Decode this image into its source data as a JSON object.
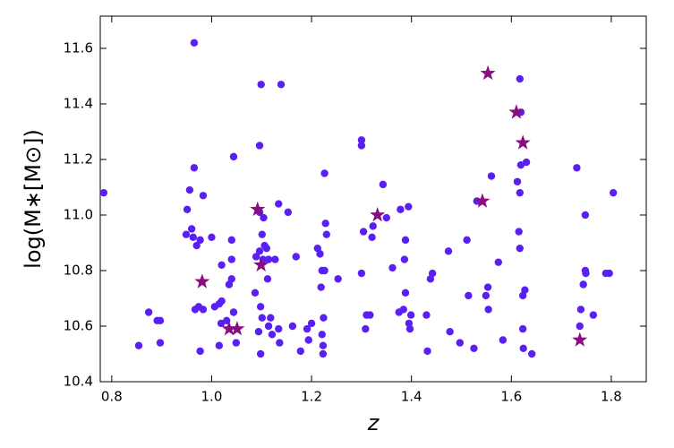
{
  "chart_data": {
    "type": "scatter",
    "xlabel": "z",
    "ylabel": "log(M∗[M⊙])",
    "xlim": [
      0.777,
      1.87
    ],
    "ylim": [
      10.4,
      11.716
    ],
    "xticks": [
      0.8,
      {
        "value": 1,
        "label": "1.0"
      },
      1.2,
      1.4,
      1.6,
      1.8
    ],
    "yticks": [
      10.4,
      10.6,
      10.8,
      {
        "value": 11,
        "label": "11.0"
      },
      11.2,
      11.4,
      11.6
    ],
    "series": [
      {
        "color": "#5a1ff2",
        "marker": "circle",
        "x": [
          0.784,
          0.854,
          0.874,
          0.891,
          0.897,
          0.897,
          0.965,
          0.965,
          0.956,
          0.951,
          0.949,
          0.96,
          0.963,
          0.97,
          0.977,
          0.983,
          0.967,
          0.974,
          0.983,
          0.977,
          1.0,
          1.006,
          1.015,
          1.02,
          1.02,
          1.015,
          1.019,
          1.04,
          1.04,
          1.035,
          1.04,
          1.044,
          1.044,
          1.049,
          1.03,
          1.096,
          1.099,
          1.139,
          1.096,
          1.101,
          1.104,
          1.096,
          1.103,
          1.106,
          1.11,
          1.114,
          1.089,
          1.087,
          1.098,
          1.094,
          1.098,
          1.101,
          1.112,
          1.114,
          1.121,
          1.118,
          1.127,
          1.134,
          1.134,
          1.136,
          1.153,
          1.162,
          1.169,
          1.178,
          1.191,
          1.194,
          1.2,
          1.212,
          1.219,
          1.217,
          1.221,
          1.226,
          1.228,
          1.23,
          1.226,
          1.224,
          1.221,
          1.223,
          1.223,
          1.253,
          1.3,
          1.3,
          1.3,
          1.304,
          1.308,
          1.31,
          1.317,
          1.321,
          1.323,
          1.343,
          1.35,
          1.362,
          1.375,
          1.378,
          1.384,
          1.386,
          1.388,
          1.388,
          1.394,
          1.395,
          1.397,
          1.399,
          1.43,
          1.432,
          1.438,
          1.442,
          1.474,
          1.477,
          1.497,
          1.511,
          1.514,
          1.525,
          1.531,
          1.549,
          1.553,
          1.554,
          1.56,
          1.574,
          1.583,
          1.612,
          1.615,
          1.617,
          1.617,
          1.617,
          1.619,
          1.619,
          1.623,
          1.623,
          1.627,
          1.624,
          1.63,
          1.641,
          1.731,
          1.748,
          1.744,
          1.789,
          1.796,
          1.804,
          1.748,
          1.749,
          1.739,
          1.737,
          1.764
        ],
        "values": [
          11.08,
          10.53,
          10.65,
          10.62,
          10.62,
          10.54,
          11.62,
          11.17,
          11.09,
          11.02,
          10.93,
          10.95,
          10.92,
          10.89,
          10.91,
          11.07,
          10.66,
          10.67,
          10.66,
          10.51,
          10.92,
          10.67,
          10.68,
          10.69,
          10.82,
          10.53,
          10.61,
          10.91,
          10.84,
          10.75,
          10.77,
          11.21,
          10.65,
          10.54,
          10.62,
          11.25,
          11.47,
          11.47,
          11.01,
          10.93,
          10.99,
          10.87,
          10.84,
          10.89,
          10.88,
          10.84,
          10.85,
          10.72,
          10.67,
          10.58,
          10.5,
          10.63,
          10.77,
          10.6,
          10.57,
          10.63,
          10.84,
          11.04,
          10.59,
          10.54,
          11.01,
          10.6,
          10.85,
          10.51,
          10.59,
          10.55,
          10.61,
          10.88,
          10.74,
          10.86,
          10.8,
          11.15,
          10.97,
          10.93,
          10.8,
          10.63,
          10.57,
          10.53,
          10.5,
          10.77,
          11.27,
          11.25,
          10.79,
          10.94,
          10.59,
          10.64,
          10.64,
          10.92,
          10.96,
          11.11,
          10.99,
          10.81,
          10.65,
          11.02,
          10.66,
          10.84,
          10.91,
          10.72,
          11.03,
          10.61,
          10.59,
          10.64,
          10.64,
          10.51,
          10.77,
          10.79,
          10.87,
          10.58,
          10.54,
          10.91,
          10.71,
          10.52,
          11.05,
          10.71,
          10.74,
          10.66,
          11.14,
          10.83,
          10.55,
          11.12,
          10.94,
          11.08,
          10.88,
          11.49,
          11.37,
          11.18,
          10.59,
          10.71,
          10.73,
          10.52,
          11.19,
          10.5,
          11.17,
          10.8,
          10.75,
          10.79,
          10.79,
          11.08,
          11.0,
          10.79,
          10.66,
          10.6,
          10.64
        ]
      },
      {
        "color": "#8a0c80",
        "marker": "star",
        "x": [
          0.981,
          1.092,
          1.099,
          1.035,
          1.051,
          1.332,
          1.542,
          1.553,
          1.61,
          1.623,
          1.737
        ],
        "values": [
          10.76,
          11.02,
          10.82,
          10.59,
          10.59,
          11.0,
          11.05,
          11.51,
          11.37,
          11.26,
          10.55
        ]
      }
    ]
  }
}
